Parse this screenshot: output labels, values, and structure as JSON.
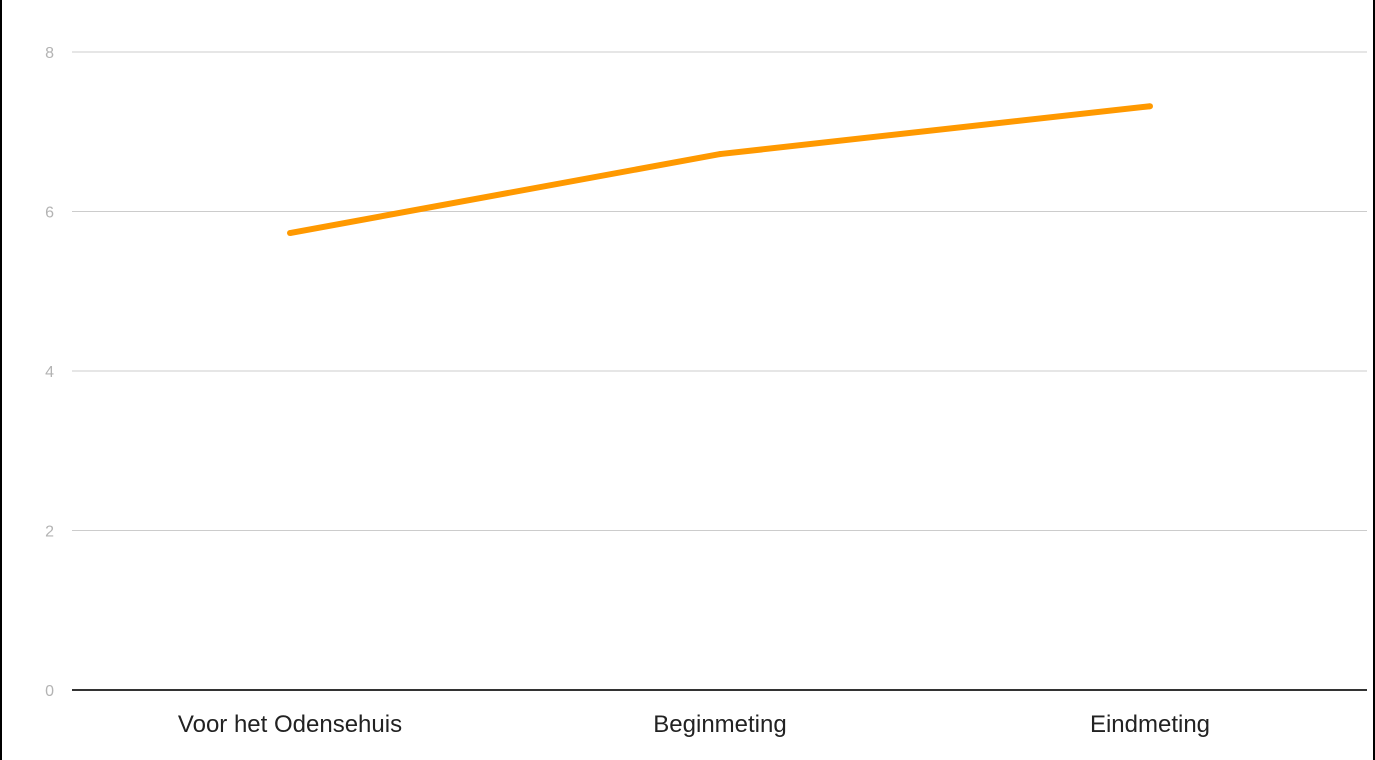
{
  "chart_data": {
    "type": "line",
    "categories": [
      "Voor het Odensehuis",
      "Beginmeting",
      "Eindmeting"
    ],
    "series": [
      {
        "values": [
          5.73,
          6.72,
          7.32
        ],
        "color": "#ff9900"
      }
    ],
    "title": "",
    "xlabel": "",
    "ylabel": "",
    "ylim": [
      0,
      8
    ],
    "yticks": [
      0,
      2,
      4,
      6,
      8
    ],
    "grid": true,
    "legend": "none"
  }
}
